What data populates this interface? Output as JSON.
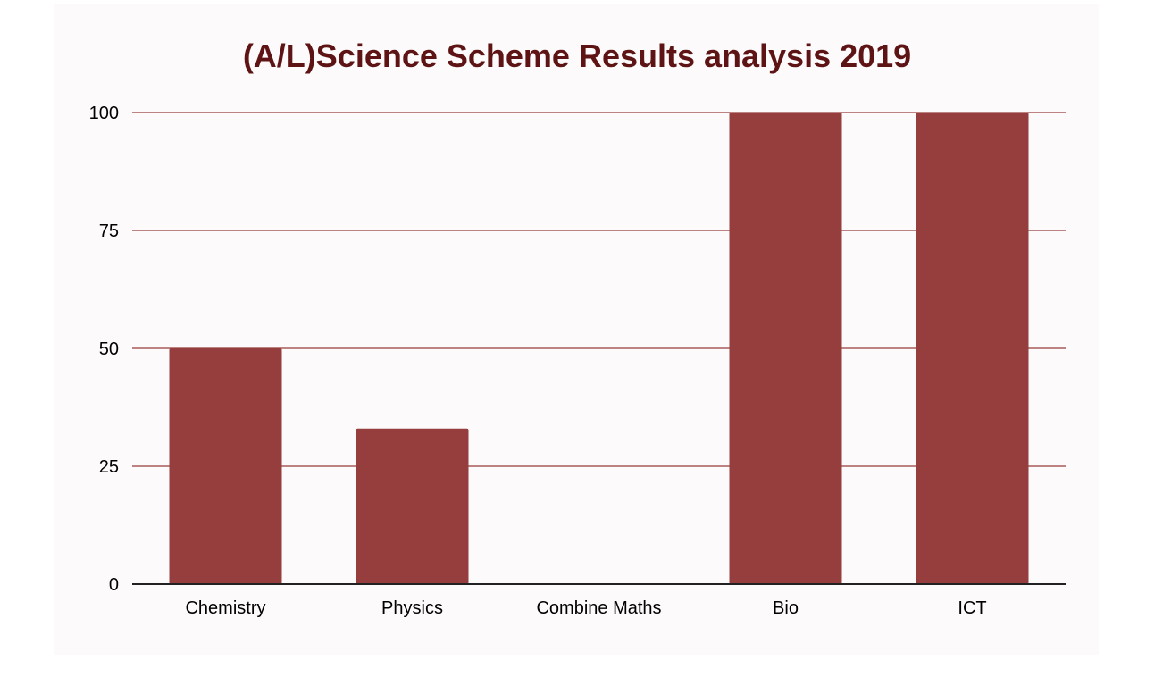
{
  "chart_data": {
    "type": "bar",
    "title": "(A/L)Science Scheme Results analysis 2019",
    "categories": [
      "Chemistry",
      "Physics",
      "Combine Maths",
      "Bio",
      "ICT"
    ],
    "values": [
      50,
      33,
      0,
      100,
      100
    ],
    "xlabel": "",
    "ylabel": "",
    "ylim": [
      0,
      100
    ],
    "yticks": [
      0,
      25,
      50,
      75,
      100
    ],
    "ytick_labels": [
      "0",
      "25",
      "50",
      "75",
      "100"
    ],
    "grid": true,
    "legend": "none",
    "bar_color": "#963d3d",
    "grid_color": "#a85a5a",
    "title_color": "#5e1414",
    "background": "#fcfafb"
  }
}
